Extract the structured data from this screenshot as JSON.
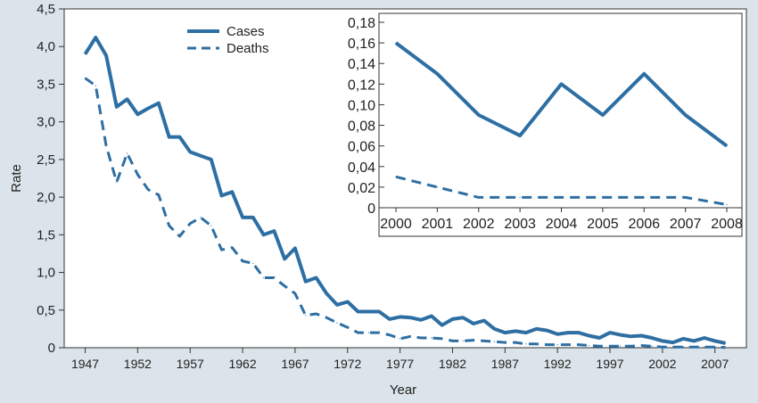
{
  "colors": {
    "background": "#dbe4ea",
    "line": "#2e6fa3",
    "axis": "#333333",
    "plot_bg": "#ffffff"
  },
  "chart_data": [
    {
      "type": "line",
      "title": "",
      "xlabel": "Year",
      "ylabel": "Rate",
      "xlim": [
        1945,
        2010
      ],
      "ylim": [
        0,
        4.5
      ],
      "x_ticks": [
        1947,
        1952,
        1957,
        1962,
        1967,
        1972,
        1977,
        1982,
        1987,
        1992,
        1997,
        2002,
        2007
      ],
      "y_ticks": [
        "0",
        "0,5",
        "1,0",
        "1,5",
        "2,0",
        "2,5",
        "3,0",
        "3,5",
        "4,0",
        "4,5"
      ],
      "y_tick_values": [
        0,
        0.5,
        1.0,
        1.5,
        2.0,
        2.5,
        3.0,
        3.5,
        4.0,
        4.5
      ],
      "grid": false,
      "legend": "top-left (inside plot)",
      "series": [
        {
          "name": "Cases",
          "style": "solid",
          "x": [
            1947,
            1948,
            1949,
            1950,
            1951,
            1952,
            1953,
            1954,
            1955,
            1956,
            1957,
            1958,
            1959,
            1960,
            1961,
            1962,
            1963,
            1964,
            1965,
            1966,
            1967,
            1968,
            1969,
            1970,
            1971,
            1972,
            1973,
            1974,
            1975,
            1976,
            1977,
            1978,
            1979,
            1980,
            1981,
            1982,
            1983,
            1984,
            1985,
            1986,
            1987,
            1988,
            1989,
            1990,
            1991,
            1992,
            1993,
            1994,
            1995,
            1996,
            1997,
            1998,
            1999,
            2000,
            2001,
            2002,
            2003,
            2004,
            2005,
            2006,
            2007,
            2008
          ],
          "values": [
            3.9,
            4.12,
            3.88,
            3.2,
            3.3,
            3.1,
            3.18,
            3.25,
            2.8,
            2.8,
            2.6,
            2.55,
            2.5,
            2.02,
            2.07,
            1.73,
            1.73,
            1.5,
            1.55,
            1.18,
            1.32,
            0.88,
            0.93,
            0.72,
            0.57,
            0.61,
            0.48,
            0.48,
            0.48,
            0.38,
            0.41,
            0.4,
            0.37,
            0.42,
            0.3,
            0.38,
            0.4,
            0.32,
            0.36,
            0.25,
            0.2,
            0.22,
            0.2,
            0.25,
            0.23,
            0.18,
            0.2,
            0.2,
            0.16,
            0.13,
            0.2,
            0.17,
            0.15,
            0.16,
            0.13,
            0.09,
            0.07,
            0.12,
            0.09,
            0.13,
            0.09,
            0.06
          ]
        },
        {
          "name": "Deaths",
          "style": "dashed",
          "x": [
            1947,
            1948,
            1949,
            1950,
            1951,
            1952,
            1953,
            1954,
            1955,
            1956,
            1957,
            1958,
            1959,
            1960,
            1961,
            1962,
            1963,
            1964,
            1965,
            1966,
            1967,
            1968,
            1969,
            1970,
            1971,
            1972,
            1973,
            1974,
            1975,
            1976,
            1977,
            1978,
            1979,
            1980,
            1981,
            1982,
            1983,
            1984,
            1985,
            1986,
            1987,
            1988,
            1989,
            1990,
            1991,
            1992,
            1993,
            1994,
            1995,
            1996,
            1997,
            1998,
            1999,
            2000,
            2001,
            2002,
            2003,
            2004,
            2005,
            2006,
            2007,
            2008
          ],
          "values": [
            3.58,
            3.48,
            2.68,
            2.2,
            2.58,
            2.3,
            2.1,
            2.03,
            1.62,
            1.48,
            1.65,
            1.73,
            1.62,
            1.3,
            1.33,
            1.15,
            1.12,
            0.93,
            0.93,
            0.82,
            0.72,
            0.43,
            0.45,
            0.4,
            0.33,
            0.27,
            0.2,
            0.2,
            0.2,
            0.17,
            0.12,
            0.15,
            0.13,
            0.13,
            0.12,
            0.09,
            0.09,
            0.1,
            0.09,
            0.08,
            0.07,
            0.07,
            0.05,
            0.05,
            0.04,
            0.04,
            0.04,
            0.04,
            0.03,
            0.02,
            0.02,
            0.02,
            0.02,
            0.03,
            0.02,
            0.01,
            0.01,
            0.01,
            0.01,
            0.01,
            0.01,
            0.003
          ]
        }
      ]
    },
    {
      "type": "line",
      "title": "",
      "xlabel": "",
      "ylabel": "",
      "ylim": [
        0,
        0.18
      ],
      "categories": [
        "2000",
        "2001",
        "2002",
        "2003",
        "2004",
        "2005",
        "2006",
        "2007",
        "2008"
      ],
      "y_ticks": [
        "0",
        "0,02",
        "0,04",
        "0,06",
        "0,08",
        "0,10",
        "0,12",
        "0,14",
        "0,16",
        "0,18"
      ],
      "y_tick_values": [
        0,
        0.02,
        0.04,
        0.06,
        0.08,
        0.1,
        0.12,
        0.14,
        0.16,
        0.18
      ],
      "grid": false,
      "series": [
        {
          "name": "Cases",
          "style": "solid",
          "values": [
            0.16,
            0.13,
            0.09,
            0.07,
            0.12,
            0.09,
            0.13,
            0.09,
            0.06
          ]
        },
        {
          "name": "Deaths",
          "style": "dashed",
          "values": [
            0.03,
            0.02,
            0.01,
            0.01,
            0.01,
            0.01,
            0.01,
            0.01,
            0.003
          ]
        }
      ]
    }
  ]
}
